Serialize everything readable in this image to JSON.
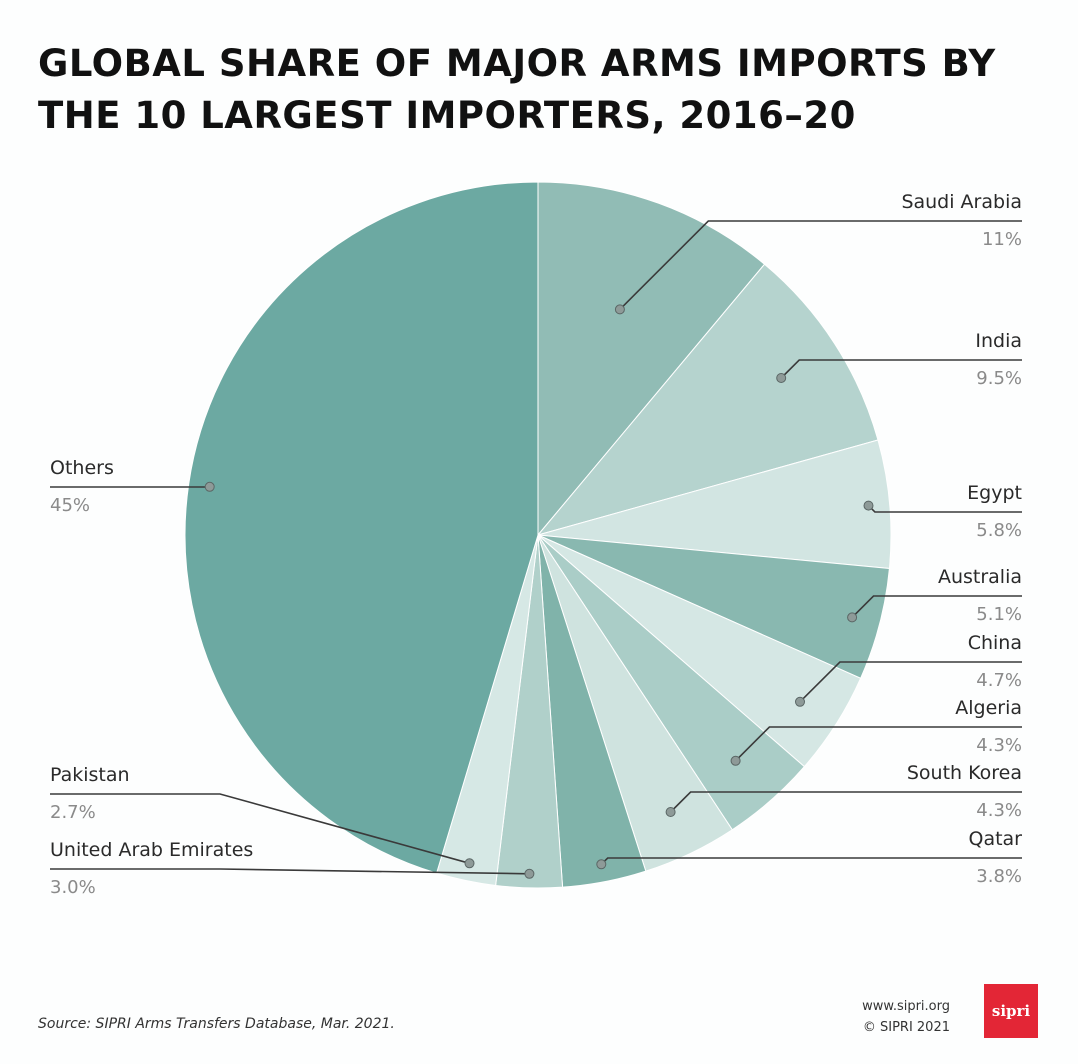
{
  "title_lines": [
    "GLOBAL SHARE OF MAJOR ARMS IMPORTS BY",
    "THE 10 LARGEST IMPORTERS, 2016–20"
  ],
  "source": "Source: SIPRI Arms Transfers Database, Mar. 2021.",
  "credits": {
    "url": "www.sipri.org",
    "copyright": "© SIPRI 2021",
    "logo_text": "sipri"
  },
  "chart_data": {
    "type": "pie",
    "title": "GLOBAL SHARE OF MAJOR ARMS IMPORTS BY THE 10 LARGEST IMPORTERS, 2016–20",
    "unit": "%",
    "start_angle_deg": 0,
    "direction": "clockwise",
    "slices": [
      {
        "label": "Saudi Arabia",
        "value": 11,
        "value_text": "11%",
        "color": "#91bcb5"
      },
      {
        "label": "India",
        "value": 9.5,
        "value_text": "9.5%",
        "color": "#b5d3ce"
      },
      {
        "label": "Egypt",
        "value": 5.8,
        "value_text": "5.8%",
        "color": "#d2e5e2"
      },
      {
        "label": "Australia",
        "value": 5.1,
        "value_text": "5.1%",
        "color": "#89b8b0"
      },
      {
        "label": "China",
        "value": 4.7,
        "value_text": "4.7%",
        "color": "#d5e7e4"
      },
      {
        "label": "Algeria",
        "value": 4.3,
        "value_text": "4.3%",
        "color": "#aacdc7"
      },
      {
        "label": "South Korea",
        "value": 4.3,
        "value_text": "4.3%",
        "color": "#cfe3df"
      },
      {
        "label": "Qatar",
        "value": 3.8,
        "value_text": "3.8%",
        "color": "#80b3aa"
      },
      {
        "label": "United Arab Emirates",
        "value": 3.0,
        "value_text": "3.0%",
        "color": "#b0d0ca"
      },
      {
        "label": "Pakistan",
        "value": 2.7,
        "value_text": "2.7%",
        "color": "#d6e8e5"
      },
      {
        "label": "Others",
        "value": 45,
        "value_text": "45%",
        "color": "#6ca9a2"
      }
    ]
  }
}
